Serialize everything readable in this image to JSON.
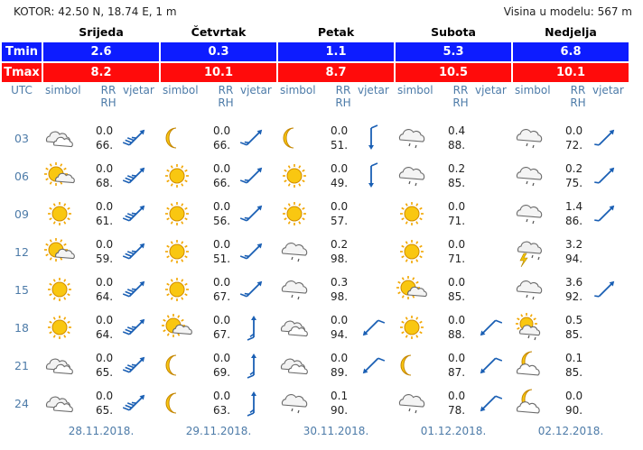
{
  "location": "KOTOR: 42.50 N, 18.74 E, 1 m",
  "model_height": "Visina u modelu: 567 m",
  "labels": {
    "tmin": "Tmin",
    "tmax": "Tmax",
    "utc": "UTC",
    "symbol": "simbol",
    "rr": "RR",
    "rh": "RH",
    "wind": "vjetar"
  },
  "days": [
    {
      "name": "Srijeda",
      "date": "28.11.2018.",
      "tmin": "2.6",
      "tmax": "8.2"
    },
    {
      "name": "Četvrtak",
      "date": "29.11.2018.",
      "tmin": "0.3",
      "tmax": "10.1"
    },
    {
      "name": "Petak",
      "date": "30.11.2018.",
      "tmin": "1.1",
      "tmax": "8.7"
    },
    {
      "name": "Subota",
      "date": "01.12.2018.",
      "tmin": "5.3",
      "tmax": "10.5"
    },
    {
      "name": "Nedjelja",
      "date": "02.12.2018.",
      "tmin": "6.8",
      "tmax": "10.1"
    }
  ],
  "hours": [
    "03",
    "06",
    "09",
    "12",
    "15",
    "18",
    "21",
    "24"
  ],
  "rows": [
    [
      {
        "icon": "cloudy-icon",
        "rr": "0.0",
        "rh": "66.",
        "wind": "ne-strong"
      },
      {
        "icon": "moon-icon",
        "rr": "0.0",
        "rh": "66.",
        "wind": "ne-med"
      },
      {
        "icon": "moon-icon",
        "rr": "0.0",
        "rh": "51.",
        "wind": "n-med"
      },
      {
        "icon": "cloud-rain-icon",
        "rr": "0.4",
        "rh": "88.",
        "wind": ""
      },
      {
        "icon": "cloud-rain-icon",
        "rr": "0.0",
        "rh": "72.",
        "wind": "ne-light"
      }
    ],
    [
      {
        "icon": "sun-cloud-icon",
        "rr": "0.0",
        "rh": "68.",
        "wind": "ne-strong"
      },
      {
        "icon": "sun-icon",
        "rr": "0.0",
        "rh": "66.",
        "wind": "ne-med"
      },
      {
        "icon": "sun-icon",
        "rr": "0.0",
        "rh": "49.",
        "wind": "n-med"
      },
      {
        "icon": "cloud-rain-icon",
        "rr": "0.2",
        "rh": "85.",
        "wind": ""
      },
      {
        "icon": "cloud-rain-icon",
        "rr": "0.2",
        "rh": "75.",
        "wind": "ne-light"
      }
    ],
    [
      {
        "icon": "sun-icon",
        "rr": "0.0",
        "rh": "61.",
        "wind": "ne-strong"
      },
      {
        "icon": "sun-icon",
        "rr": "0.0",
        "rh": "56.",
        "wind": "ne-med"
      },
      {
        "icon": "sun-icon",
        "rr": "0.0",
        "rh": "57.",
        "wind": ""
      },
      {
        "icon": "sun-icon",
        "rr": "0.0",
        "rh": "71.",
        "wind": ""
      },
      {
        "icon": "cloud-rain-icon",
        "rr": "1.4",
        "rh": "86.",
        "wind": "ne-light"
      }
    ],
    [
      {
        "icon": "sun-cloud-icon",
        "rr": "0.0",
        "rh": "59.",
        "wind": "ne-strong"
      },
      {
        "icon": "sun-icon",
        "rr": "0.0",
        "rh": "51.",
        "wind": "ne-med"
      },
      {
        "icon": "cloud-rain-icon",
        "rr": "0.2",
        "rh": "98.",
        "wind": ""
      },
      {
        "icon": "sun-icon",
        "rr": "0.0",
        "rh": "71.",
        "wind": ""
      },
      {
        "icon": "thunderstorm-icon",
        "rr": "3.2",
        "rh": "94.",
        "wind": ""
      }
    ],
    [
      {
        "icon": "sun-icon",
        "rr": "0.0",
        "rh": "64.",
        "wind": "ne-strong"
      },
      {
        "icon": "sun-icon",
        "rr": "0.0",
        "rh": "67.",
        "wind": "ne-med"
      },
      {
        "icon": "cloud-rain-icon",
        "rr": "0.3",
        "rh": "98.",
        "wind": ""
      },
      {
        "icon": "sun-cloud-icon",
        "rr": "0.0",
        "rh": "85.",
        "wind": ""
      },
      {
        "icon": "cloud-rain-icon",
        "rr": "3.6",
        "rh": "92.",
        "wind": "ne-light"
      }
    ],
    [
      {
        "icon": "sun-icon",
        "rr": "0.0",
        "rh": "64.",
        "wind": "ne-strong"
      },
      {
        "icon": "sun-cloud-icon",
        "rr": "0.0",
        "rh": "67.",
        "wind": "s-med"
      },
      {
        "icon": "cloudy-icon",
        "rr": "0.0",
        "rh": "94.",
        "wind": "sw-med"
      },
      {
        "icon": "sun-icon",
        "rr": "0.0",
        "rh": "88.",
        "wind": "sw-med"
      },
      {
        "icon": "sun-rain-icon",
        "rr": "0.5",
        "rh": "85.",
        "wind": ""
      }
    ],
    [
      {
        "icon": "cloudy-icon",
        "rr": "0.0",
        "rh": "65.",
        "wind": "ne-strong"
      },
      {
        "icon": "moon-icon",
        "rr": "0.0",
        "rh": "69.",
        "wind": "s-med"
      },
      {
        "icon": "cloudy-icon",
        "rr": "0.0",
        "rh": "89.",
        "wind": "sw-med"
      },
      {
        "icon": "moon-icon",
        "rr": "0.0",
        "rh": "87.",
        "wind": "sw-med"
      },
      {
        "icon": "moon-cloud-icon",
        "rr": "0.1",
        "rh": "85.",
        "wind": ""
      }
    ],
    [
      {
        "icon": "cloudy-icon",
        "rr": "0.0",
        "rh": "65.",
        "wind": "ne-strong"
      },
      {
        "icon": "moon-icon",
        "rr": "0.0",
        "rh": "63.",
        "wind": "s-med"
      },
      {
        "icon": "cloud-rain-icon",
        "rr": "0.1",
        "rh": "90.",
        "wind": ""
      },
      {
        "icon": "cloud-rain-icon",
        "rr": "0.0",
        "rh": "78.",
        "wind": "sw-med"
      },
      {
        "icon": "moon-cloud-icon",
        "rr": "0.0",
        "rh": "90.",
        "wind": ""
      }
    ]
  ],
  "colors": {
    "tmin_bg": "#0d1cff",
    "tmax_bg": "#ff0b0b",
    "accent": "#4d7ba8",
    "wind_arrow": "#1a5fb4"
  }
}
